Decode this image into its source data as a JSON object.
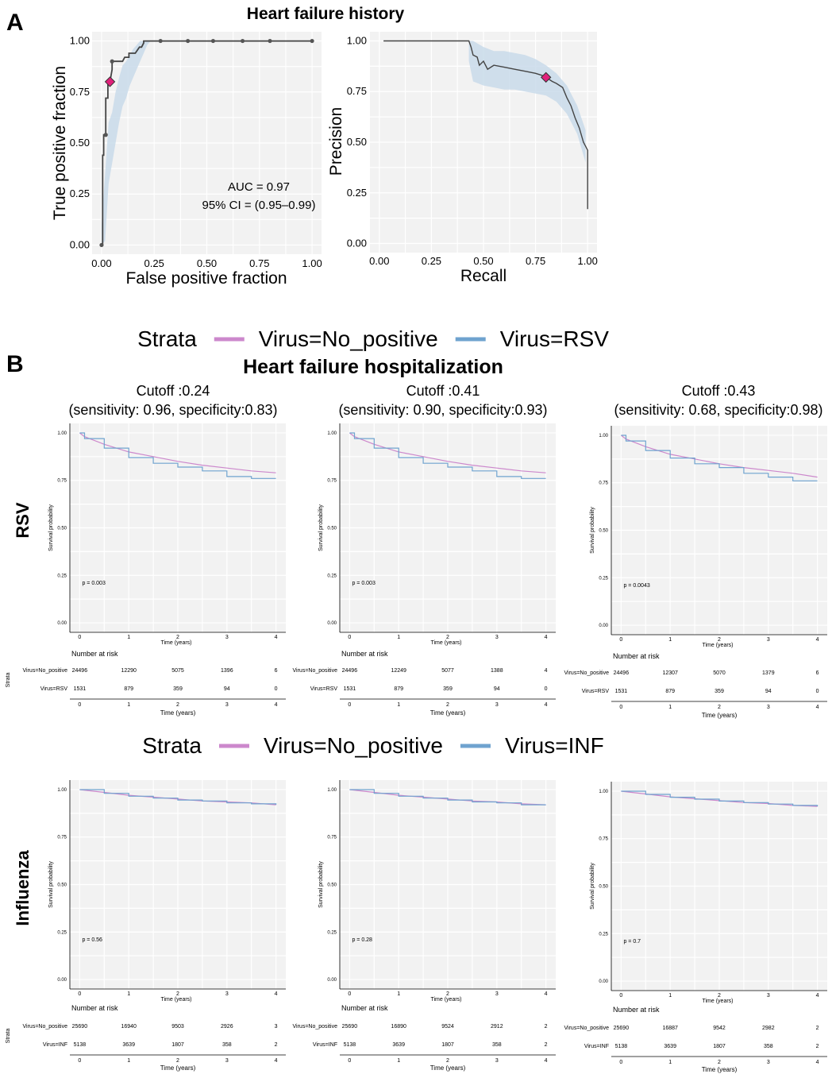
{
  "panel_a": {
    "letter": "A",
    "title": "Heart failure history",
    "roc": {
      "xlabel": "False positive fraction",
      "ylabel": "True positive fraction",
      "ticks": [
        "0.00",
        "0.25",
        "0.50",
        "0.75",
        "1.00"
      ],
      "auc_label": "AUC = 0.97",
      "ci_label": "95% CI = (0.95–0.99)"
    },
    "pr": {
      "xlabel": "Recall",
      "ylabel": "Precision",
      "ticks": [
        "0.00",
        "0.25",
        "0.50",
        "0.75",
        "1.00"
      ]
    }
  },
  "panel_b": {
    "letter": "B",
    "title": "Heart failure hospitalization",
    "cutoffs": [
      {
        "cutoff": "Cutoff :0.24",
        "metrics": "(sensitivity: 0.96, specificity:0.83)"
      },
      {
        "cutoff": "Cutoff :0.41",
        "metrics": "(sensitivity: 0.90, specificity:0.93)"
      },
      {
        "cutoff": "Cutoff :0.43",
        "metrics": "(sensitivity: 0.68, specificity:0.98)"
      }
    ],
    "common": {
      "ylabel": "Survival probability",
      "xlabel": "Time (years)",
      "yticks": [
        "0.00",
        "0.25",
        "0.50",
        "0.75",
        "1.00"
      ],
      "xticks": [
        "0",
        "1",
        "2",
        "3",
        "4"
      ],
      "risk_title": "Number at risk",
      "strata_axis": "Strata"
    },
    "rows": [
      {
        "row_label": "RSV",
        "legend_title": "Strata",
        "legend_items": [
          "Virus=No_positive",
          "Virus=RSV"
        ],
        "strata_labels": [
          "Virus=No_positive",
          "Virus=RSV"
        ],
        "plots": [
          {
            "p_value": "p = 0.003",
            "risk": [
              [
                "24496",
                "12290",
                "5075",
                "1396",
                "6"
              ],
              [
                "1531",
                "879",
                "359",
                "94",
                "0"
              ]
            ]
          },
          {
            "p_value": "p = 0.003",
            "risk": [
              [
                "24496",
                "12249",
                "5077",
                "1388",
                "4"
              ],
              [
                "1531",
                "879",
                "359",
                "94",
                "0"
              ]
            ]
          },
          {
            "p_value": "p = 0.0043",
            "risk": [
              [
                "24496",
                "12307",
                "5070",
                "1379",
                "6"
              ],
              [
                "1531",
                "879",
                "359",
                "94",
                "0"
              ]
            ]
          }
        ]
      },
      {
        "row_label": "Influenza",
        "legend_title": "Strata",
        "legend_items": [
          "Virus=No_positive",
          "Virus=INF"
        ],
        "strata_labels": [
          "Virus=No_positive",
          "Virus=INF"
        ],
        "plots": [
          {
            "p_value": "p = 0.56",
            "risk": [
              [
                "25690",
                "16940",
                "9503",
                "2926",
                "3"
              ],
              [
                "5138",
                "3639",
                "1807",
                "358",
                "2"
              ]
            ]
          },
          {
            "p_value": "p = 0.28",
            "risk": [
              [
                "25690",
                "16890",
                "9524",
                "2912",
                "2"
              ],
              [
                "5138",
                "3639",
                "1807",
                "358",
                "2"
              ]
            ]
          },
          {
            "p_value": "p = 0.7",
            "risk": [
              [
                "25690",
                "16887",
                "9542",
                "2982",
                "2"
              ],
              [
                "5138",
                "3639",
                "1807",
                "358",
                "2"
              ]
            ]
          }
        ]
      }
    ]
  },
  "colors": {
    "no_positive": "#cc88cc",
    "virus": "#6fa3cf",
    "ci_band": "#c9dbea",
    "curve": "#444444",
    "marker": "#e0217a",
    "panel_bg": "#f2f2f2",
    "grid": "#ffffff"
  },
  "chart_data": [
    {
      "type": "line",
      "title": "Heart failure history",
      "xlabel": "False positive fraction",
      "ylabel": "True positive fraction",
      "xlim": [
        0,
        1
      ],
      "ylim": [
        0,
        1
      ],
      "series": [
        {
          "x": [
            0,
            0.005,
            0.005,
            0.01,
            0.01,
            0.02,
            0.02,
            0.03,
            0.03,
            0.04,
            0.05,
            0.05,
            0.07,
            0.07,
            0.1,
            0.11,
            0.13,
            0.13,
            0.16,
            0.18,
            0.19,
            0.2,
            0.2,
            0.23,
            0.28,
            0.41,
            0.53,
            0.67,
            0.8,
            1.0
          ],
          "y": [
            0,
            0,
            0.44,
            0.44,
            0.54,
            0.54,
            0.72,
            0.72,
            0.8,
            0.8,
            0.86,
            0.9,
            0.9,
            0.9,
            0.9,
            0.92,
            0.92,
            0.94,
            0.94,
            0.97,
            0.97,
            0.99,
            1.0,
            1.0,
            1.0,
            1.0,
            1.0,
            1.0,
            1.0,
            1.0
          ],
          "ci_upper": [
            0.1,
            0.35,
            0.6,
            0.65,
            0.75,
            0.82,
            0.88,
            0.9,
            0.93,
            0.96,
            0.98,
            1.0,
            1.0,
            1.0,
            1.0,
            1.0
          ],
          "ci_lower": [
            0,
            0.02,
            0.3,
            0.4,
            0.5,
            0.6,
            0.68,
            0.72,
            0.78,
            0.82,
            0.86,
            0.9,
            0.94,
            0.98,
            1.0,
            1.0
          ]
        }
      ],
      "points": {
        "x": [
          0,
          0.02,
          0.05,
          0.28,
          0.41,
          0.53,
          0.67,
          0.8,
          1.0
        ],
        "y": [
          0,
          0.54,
          0.9,
          1,
          1,
          1,
          1,
          1,
          1
        ]
      },
      "highlight": {
        "x": 0.04,
        "y": 0.8
      },
      "annotations": [
        "AUC = 0.97",
        "95% CI = (0.95–0.99)"
      ]
    },
    {
      "type": "line",
      "xlabel": "Recall",
      "ylabel": "Precision",
      "xlim": [
        0,
        1
      ],
      "ylim": [
        0,
        1
      ],
      "series": [
        {
          "x": [
            0.02,
            0.43,
            0.44,
            0.45,
            0.47,
            0.48,
            0.5,
            0.52,
            0.55,
            0.6,
            0.65,
            0.7,
            0.75,
            0.78,
            0.8,
            0.83,
            0.85,
            0.88,
            0.9,
            0.92,
            0.94,
            0.96,
            0.98,
            0.99,
            1.0,
            1.0
          ],
          "y": [
            1.0,
            1.0,
            0.97,
            0.93,
            0.92,
            0.88,
            0.9,
            0.86,
            0.88,
            0.87,
            0.86,
            0.85,
            0.84,
            0.83,
            0.82,
            0.8,
            0.79,
            0.77,
            0.72,
            0.68,
            0.62,
            0.57,
            0.5,
            0.48,
            0.46,
            0.17
          ]
        }
      ],
      "highlight": {
        "x": 0.8,
        "y": 0.82
      }
    },
    {
      "type": "line",
      "title": "Cutoff :0.24",
      "xlabel": "Time (years)",
      "ylabel": "Survival probability",
      "xlim": [
        0,
        4
      ],
      "ylim": [
        0,
        1
      ],
      "series": [
        {
          "name": "Virus=No_positive",
          "x": [
            0,
            0.1,
            0.5,
            1,
            1.5,
            2,
            2.5,
            3,
            3.5,
            4
          ],
          "y": [
            1,
            0.98,
            0.94,
            0.9,
            0.875,
            0.85,
            0.83,
            0.815,
            0.8,
            0.79
          ]
        },
        {
          "name": "Virus=RSV",
          "x": [
            0,
            0.1,
            0.5,
            1,
            1.5,
            2,
            2.5,
            3,
            3.5,
            4
          ],
          "y": [
            1,
            0.97,
            0.92,
            0.87,
            0.84,
            0.82,
            0.8,
            0.77,
            0.76,
            0.76
          ]
        }
      ]
    },
    {
      "type": "line",
      "title": "Cutoff :0.41",
      "xlabel": "Time (years)",
      "ylabel": "Survival probability",
      "xlim": [
        0,
        4
      ],
      "ylim": [
        0,
        1
      ],
      "series": [
        {
          "name": "Virus=No_positive",
          "x": [
            0,
            0.1,
            0.5,
            1,
            1.5,
            2,
            2.5,
            3,
            3.5,
            4
          ],
          "y": [
            1,
            0.98,
            0.94,
            0.9,
            0.875,
            0.85,
            0.83,
            0.815,
            0.8,
            0.79
          ]
        },
        {
          "name": "Virus=RSV",
          "x": [
            0,
            0.1,
            0.5,
            1,
            1.5,
            2,
            2.5,
            3,
            3.5,
            4
          ],
          "y": [
            1,
            0.97,
            0.92,
            0.87,
            0.84,
            0.82,
            0.8,
            0.77,
            0.76,
            0.76
          ]
        }
      ]
    },
    {
      "type": "line",
      "title": "Cutoff :0.43",
      "xlabel": "Time (years)",
      "ylabel": "Survival probability",
      "xlim": [
        0,
        4
      ],
      "ylim": [
        0,
        1
      ],
      "series": [
        {
          "name": "Virus=No_positive",
          "x": [
            0,
            0.1,
            0.5,
            1,
            1.5,
            2,
            2.5,
            3,
            3.5,
            4
          ],
          "y": [
            1,
            0.98,
            0.94,
            0.9,
            0.875,
            0.85,
            0.83,
            0.815,
            0.8,
            0.78
          ]
        },
        {
          "name": "Virus=RSV",
          "x": [
            0,
            0.1,
            0.5,
            1,
            1.5,
            2,
            2.5,
            3,
            3.5,
            4
          ],
          "y": [
            1,
            0.97,
            0.92,
            0.88,
            0.85,
            0.83,
            0.8,
            0.78,
            0.76,
            0.76
          ]
        }
      ]
    },
    {
      "type": "line",
      "xlabel": "Time (years)",
      "ylabel": "Survival probability",
      "xlim": [
        0,
        4
      ],
      "ylim": [
        0,
        1
      ],
      "series": [
        {
          "name": "Virus=No_positive",
          "x": [
            0,
            0.5,
            1,
            1.5,
            2,
            2.5,
            3,
            3.5,
            4
          ],
          "y": [
            1,
            0.985,
            0.97,
            0.96,
            0.95,
            0.94,
            0.935,
            0.93,
            0.92
          ]
        },
        {
          "name": "Virus=INF",
          "x": [
            0,
            0.5,
            1,
            1.5,
            2,
            2.5,
            3,
            3.5,
            4
          ],
          "y": [
            1,
            0.98,
            0.965,
            0.955,
            0.945,
            0.94,
            0.93,
            0.925,
            0.92
          ]
        }
      ]
    },
    {
      "type": "line",
      "xlabel": "Time (years)",
      "ylabel": "Survival probability",
      "xlim": [
        0,
        4
      ],
      "ylim": [
        0,
        1
      ],
      "series": [
        {
          "name": "Virus=No_positive",
          "x": [
            0,
            0.5,
            1,
            1.5,
            2,
            2.5,
            3,
            3.5,
            4
          ],
          "y": [
            1,
            0.985,
            0.97,
            0.96,
            0.95,
            0.94,
            0.935,
            0.925,
            0.92
          ]
        },
        {
          "name": "Virus=INF",
          "x": [
            0,
            0.5,
            1,
            1.5,
            2,
            2.5,
            3,
            3.5,
            4
          ],
          "y": [
            1,
            0.98,
            0.965,
            0.955,
            0.945,
            0.935,
            0.93,
            0.92,
            0.92
          ]
        }
      ]
    },
    {
      "type": "line",
      "xlabel": "Time (years)",
      "ylabel": "Survival probability",
      "xlim": [
        0,
        4
      ],
      "ylim": [
        0,
        1
      ],
      "series": [
        {
          "name": "Virus=No_positive",
          "x": [
            0,
            0.5,
            1,
            1.5,
            2,
            2.5,
            3,
            3.5,
            4
          ],
          "y": [
            1,
            0.985,
            0.97,
            0.96,
            0.95,
            0.94,
            0.935,
            0.925,
            0.92
          ]
        },
        {
          "name": "Virus=INF",
          "x": [
            0,
            0.5,
            1,
            1.5,
            2,
            2.5,
            3,
            3.5,
            4
          ],
          "y": [
            1,
            0.983,
            0.968,
            0.958,
            0.948,
            0.94,
            0.932,
            0.925,
            0.92
          ]
        }
      ]
    }
  ]
}
